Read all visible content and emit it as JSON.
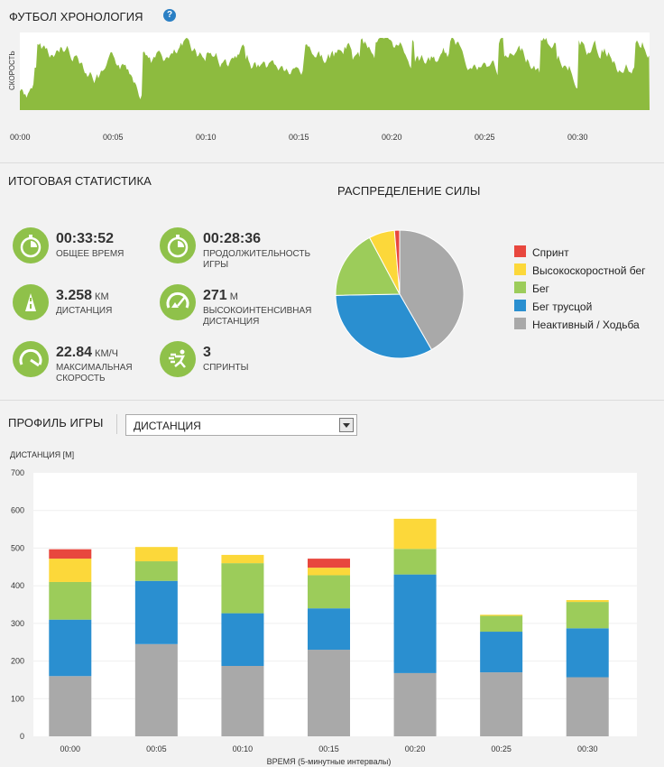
{
  "timeline": {
    "title": "ФУТБОЛ ХРОНОЛОГИЯ",
    "help_icon": "help-icon",
    "ylabel": "СКОРОСТЬ",
    "ticks": [
      "00:00",
      "00:05",
      "00:10",
      "00:15",
      "00:20",
      "00:25",
      "00:30"
    ],
    "color": "#8dbb3f"
  },
  "summary": {
    "title": "ИТОГОВАЯ СТАТИСТИКА",
    "stats": [
      {
        "icon": "stopwatch-icon",
        "value": "00:33:52",
        "unit": "",
        "label": "ОБЩЕЕ ВРЕМЯ"
      },
      {
        "icon": "stopwatch-icon",
        "value": "00:28:36",
        "unit": "",
        "label": "ПРОДОЛЖИТЕЛЬНОСТЬ ИГРЫ"
      },
      {
        "icon": "distance-road-icon",
        "value": "3.258",
        "unit": "КМ",
        "label": "ДИСТАНЦИЯ"
      },
      {
        "icon": "high-intensity-icon",
        "value": "271",
        "unit": "М",
        "label": "ВЫСОКОИНТЕНСИВНАЯ ДИСТАНЦИЯ"
      },
      {
        "icon": "speedometer-icon",
        "value": "22.84",
        "unit": "КМ/Ч",
        "label": "МАКСИМАЛЬНАЯ СКОРОСТЬ"
      },
      {
        "icon": "sprint-runner-icon",
        "value": "3",
        "unit": "",
        "label": "СПРИНТЫ"
      }
    ]
  },
  "force": {
    "title": "РАСПРЕДЕЛЕНИЕ СИЛЫ",
    "legend": [
      {
        "name": "Спринт",
        "color": "#e8473e"
      },
      {
        "name": "Высокоскоростной бег",
        "color": "#fcd83a"
      },
      {
        "name": "Бег",
        "color": "#9ccc5a"
      },
      {
        "name": "Бег трусцой",
        "color": "#2a8fd0"
      },
      {
        "name": "Неактивный / Ходьба",
        "color": "#a9a9a9"
      }
    ]
  },
  "profile": {
    "title": "ПРОФИЛЬ ИГРЫ",
    "select_value": "ДИСТАНЦИЯ"
  },
  "chart_data": [
    {
      "type": "pie",
      "title": "РАСПРЕДЕЛЕНИЕ СИЛЫ",
      "categories": [
        "Спринт",
        "Высокоскоростной бег",
        "Бег",
        "Бег трусцой",
        "Неактивный / Ходьба"
      ],
      "values": [
        1.3,
        6.5,
        17.5,
        33.0,
        41.7
      ],
      "colors": [
        "#e8473e",
        "#fcd83a",
        "#9ccc5a",
        "#2a8fd0",
        "#a9a9a9"
      ],
      "legend": "right"
    },
    {
      "type": "bar",
      "stacked": true,
      "ylabel": "ДИСТАНЦИЯ [М]",
      "xlabel": "ВРЕМЯ (5-минутные интервалы)",
      "ylim": [
        0,
        700
      ],
      "yticks": [
        0,
        100,
        200,
        300,
        400,
        500,
        600,
        700
      ],
      "categories": [
        "00:00",
        "00:05",
        "00:10",
        "00:15",
        "00:20",
        "00:25",
        "00:30"
      ],
      "series": [
        {
          "name": "Неактивный / Ходьба",
          "color": "#a9a9a9",
          "values": [
            160,
            245,
            187,
            230,
            168,
            170,
            157
          ]
        },
        {
          "name": "Бег трусцой",
          "color": "#2a8fd0",
          "values": [
            150,
            168,
            140,
            110,
            262,
            108,
            130
          ]
        },
        {
          "name": "Бег",
          "color": "#9ccc5a",
          "values": [
            100,
            52,
            133,
            88,
            68,
            42,
            70
          ]
        },
        {
          "name": "Высокоскоростной бег",
          "color": "#fcd83a",
          "values": [
            62,
            38,
            22,
            20,
            80,
            3,
            5
          ]
        },
        {
          "name": "Спринт",
          "color": "#e8473e",
          "values": [
            25,
            0,
            0,
            24,
            0,
            0,
            0
          ]
        }
      ],
      "grid": true
    }
  ]
}
